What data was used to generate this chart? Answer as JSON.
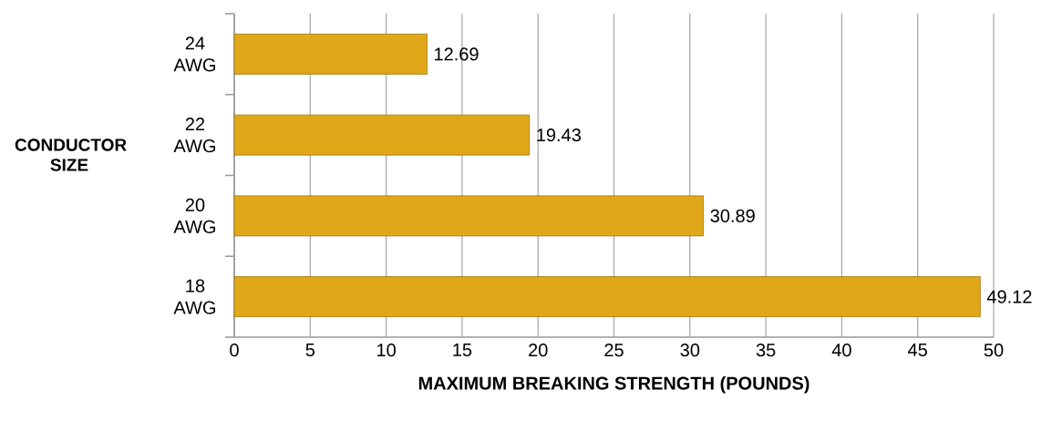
{
  "chart_data": {
    "type": "bar",
    "orientation": "horizontal",
    "categories": [
      "24 AWG",
      "22 AWG",
      "20 AWG",
      "18 AWG"
    ],
    "values": [
      12.69,
      19.43,
      30.89,
      49.12
    ],
    "color": "#e0a818",
    "data_labels": true,
    "xlim": [
      0,
      50
    ],
    "xticks": [
      0,
      5,
      10,
      15,
      20,
      25,
      30,
      35,
      40,
      45,
      50
    ],
    "grid": "x",
    "xlabel": "MAXIMUM  BREAKING  STRENGTH  (POUNDS)",
    "ylabel": "CONDUCTOR SIZE"
  }
}
